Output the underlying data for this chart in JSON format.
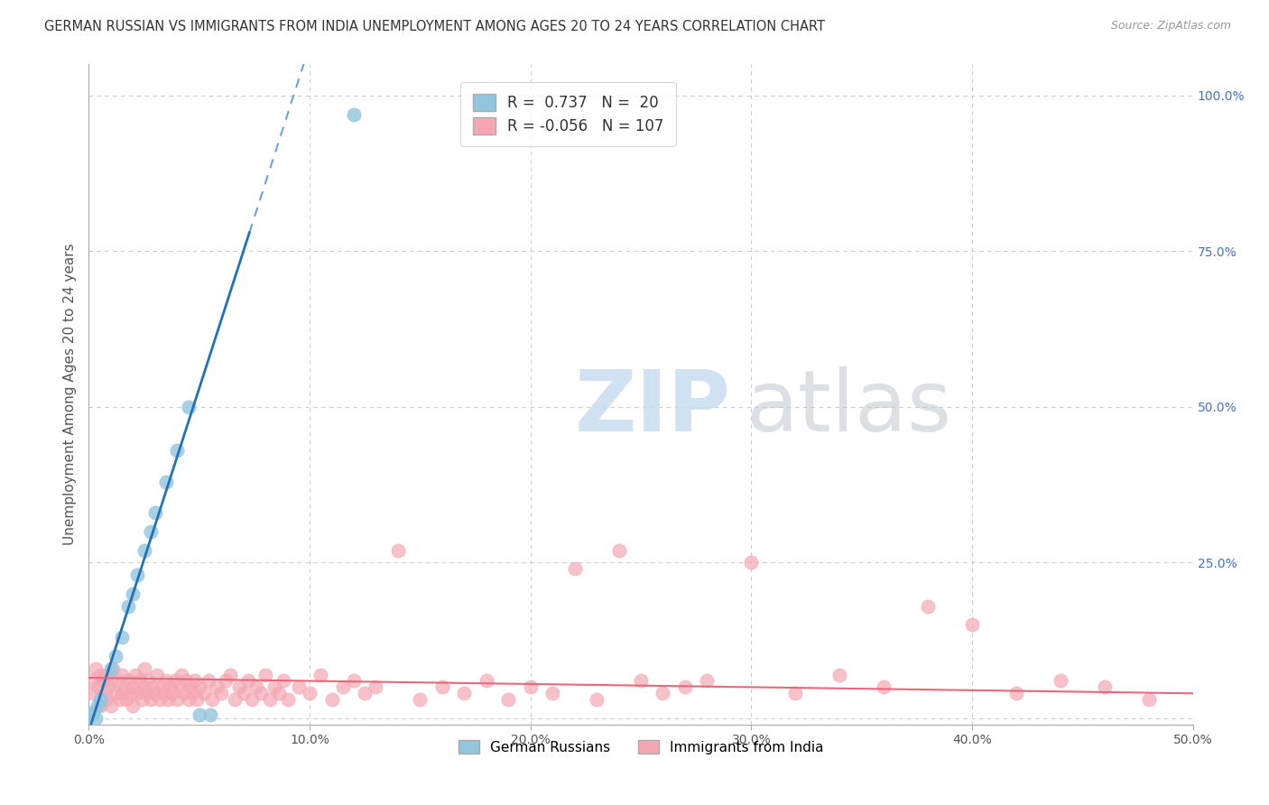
{
  "title": "GERMAN RUSSIAN VS IMMIGRANTS FROM INDIA UNEMPLOYMENT AMONG AGES 20 TO 24 YEARS CORRELATION CHART",
  "source": "Source: ZipAtlas.com",
  "ylabel": "Unemployment Among Ages 20 to 24 years",
  "xlim": [
    0.0,
    0.5
  ],
  "ylim": [
    -0.01,
    1.05
  ],
  "yticks": [
    0.0,
    0.25,
    0.5,
    0.75,
    1.0
  ],
  "ytick_labels": [
    "",
    "25.0%",
    "50.0%",
    "75.0%",
    "100.0%"
  ],
  "xticks": [
    0.0,
    0.1,
    0.2,
    0.3,
    0.4,
    0.5
  ],
  "xtick_labels": [
    "0.0%",
    "10.0%",
    "20.0%",
    "30.0%",
    "40.0%",
    "50.0%"
  ],
  "legend": {
    "R1": 0.737,
    "N1": 20,
    "R2": -0.056,
    "N2": 107,
    "color1": "#92c5de",
    "color2": "#f4a7b2"
  },
  "german_russian_color": "#92c5de",
  "india_color": "#f4a7b2",
  "trendline_german_color": "#2171b5",
  "trendline_india_color": "#e8677a",
  "background_color": "#ffffff",
  "grid_color": "#cccccc",
  "trendline_german_slope": 11.0,
  "trendline_german_intercept": -0.02,
  "trendline_india_slope": -0.05,
  "trendline_india_intercept": 0.065,
  "german_russian_points": [
    [
      0.001,
      0.005
    ],
    [
      0.002,
      0.01
    ],
    [
      0.003,
      0.0
    ],
    [
      0.004,
      0.02
    ],
    [
      0.005,
      0.03
    ],
    [
      0.01,
      0.08
    ],
    [
      0.012,
      0.1
    ],
    [
      0.015,
      0.13
    ],
    [
      0.018,
      0.18
    ],
    [
      0.02,
      0.2
    ],
    [
      0.022,
      0.23
    ],
    [
      0.025,
      0.27
    ],
    [
      0.028,
      0.3
    ],
    [
      0.03,
      0.33
    ],
    [
      0.035,
      0.38
    ],
    [
      0.04,
      0.43
    ],
    [
      0.045,
      0.5
    ],
    [
      0.05,
      0.005
    ],
    [
      0.055,
      0.005
    ],
    [
      0.12,
      0.97
    ]
  ],
  "india_points": [
    [
      0.001,
      0.06
    ],
    [
      0.002,
      0.04
    ],
    [
      0.003,
      0.08
    ],
    [
      0.004,
      0.05
    ],
    [
      0.005,
      0.07
    ],
    [
      0.005,
      0.02
    ],
    [
      0.006,
      0.06
    ],
    [
      0.007,
      0.04
    ],
    [
      0.008,
      0.07
    ],
    [
      0.008,
      0.03
    ],
    [
      0.009,
      0.05
    ],
    [
      0.01,
      0.06
    ],
    [
      0.01,
      0.02
    ],
    [
      0.011,
      0.08
    ],
    [
      0.012,
      0.04
    ],
    [
      0.013,
      0.06
    ],
    [
      0.014,
      0.03
    ],
    [
      0.015,
      0.07
    ],
    [
      0.015,
      0.04
    ],
    [
      0.016,
      0.05
    ],
    [
      0.017,
      0.03
    ],
    [
      0.018,
      0.06
    ],
    [
      0.019,
      0.04
    ],
    [
      0.02,
      0.05
    ],
    [
      0.02,
      0.02
    ],
    [
      0.021,
      0.07
    ],
    [
      0.022,
      0.04
    ],
    [
      0.023,
      0.06
    ],
    [
      0.024,
      0.03
    ],
    [
      0.025,
      0.05
    ],
    [
      0.025,
      0.08
    ],
    [
      0.026,
      0.04
    ],
    [
      0.027,
      0.06
    ],
    [
      0.028,
      0.03
    ],
    [
      0.029,
      0.05
    ],
    [
      0.03,
      0.04
    ],
    [
      0.031,
      0.07
    ],
    [
      0.032,
      0.03
    ],
    [
      0.033,
      0.05
    ],
    [
      0.034,
      0.04
    ],
    [
      0.035,
      0.06
    ],
    [
      0.036,
      0.03
    ],
    [
      0.037,
      0.05
    ],
    [
      0.038,
      0.04
    ],
    [
      0.039,
      0.06
    ],
    [
      0.04,
      0.03
    ],
    [
      0.041,
      0.05
    ],
    [
      0.042,
      0.07
    ],
    [
      0.043,
      0.04
    ],
    [
      0.044,
      0.06
    ],
    [
      0.045,
      0.03
    ],
    [
      0.046,
      0.05
    ],
    [
      0.047,
      0.04
    ],
    [
      0.048,
      0.06
    ],
    [
      0.049,
      0.03
    ],
    [
      0.05,
      0.05
    ],
    [
      0.052,
      0.04
    ],
    [
      0.054,
      0.06
    ],
    [
      0.056,
      0.03
    ],
    [
      0.058,
      0.05
    ],
    [
      0.06,
      0.04
    ],
    [
      0.062,
      0.06
    ],
    [
      0.064,
      0.07
    ],
    [
      0.066,
      0.03
    ],
    [
      0.068,
      0.05
    ],
    [
      0.07,
      0.04
    ],
    [
      0.072,
      0.06
    ],
    [
      0.074,
      0.03
    ],
    [
      0.076,
      0.05
    ],
    [
      0.078,
      0.04
    ],
    [
      0.08,
      0.07
    ],
    [
      0.082,
      0.03
    ],
    [
      0.084,
      0.05
    ],
    [
      0.086,
      0.04
    ],
    [
      0.088,
      0.06
    ],
    [
      0.09,
      0.03
    ],
    [
      0.095,
      0.05
    ],
    [
      0.1,
      0.04
    ],
    [
      0.105,
      0.07
    ],
    [
      0.11,
      0.03
    ],
    [
      0.115,
      0.05
    ],
    [
      0.12,
      0.06
    ],
    [
      0.125,
      0.04
    ],
    [
      0.13,
      0.05
    ],
    [
      0.14,
      0.27
    ],
    [
      0.15,
      0.03
    ],
    [
      0.16,
      0.05
    ],
    [
      0.17,
      0.04
    ],
    [
      0.18,
      0.06
    ],
    [
      0.19,
      0.03
    ],
    [
      0.2,
      0.05
    ],
    [
      0.21,
      0.04
    ],
    [
      0.22,
      0.24
    ],
    [
      0.23,
      0.03
    ],
    [
      0.24,
      0.27
    ],
    [
      0.25,
      0.06
    ],
    [
      0.26,
      0.04
    ],
    [
      0.27,
      0.05
    ],
    [
      0.28,
      0.06
    ],
    [
      0.3,
      0.25
    ],
    [
      0.32,
      0.04
    ],
    [
      0.34,
      0.07
    ],
    [
      0.36,
      0.05
    ],
    [
      0.38,
      0.18
    ],
    [
      0.4,
      0.15
    ],
    [
      0.42,
      0.04
    ],
    [
      0.44,
      0.06
    ],
    [
      0.46,
      0.05
    ],
    [
      0.48,
      0.03
    ]
  ]
}
